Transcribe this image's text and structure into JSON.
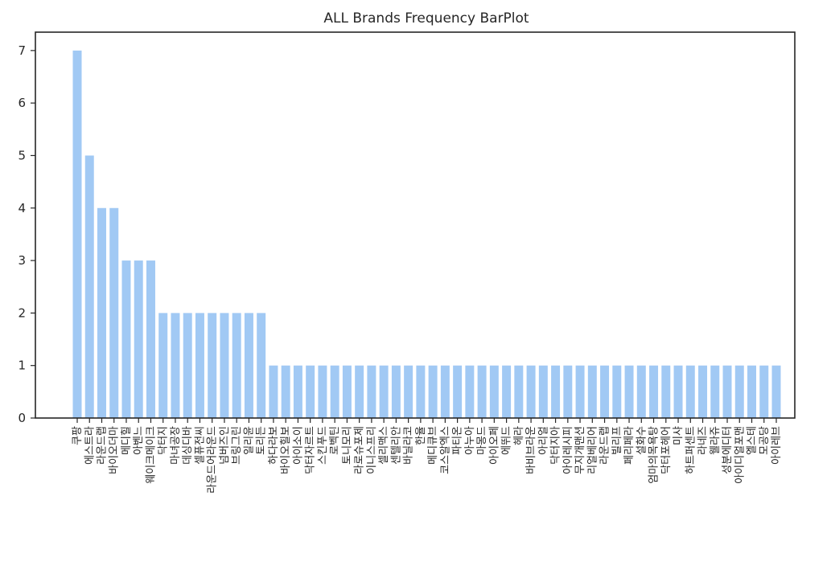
{
  "chart_data": {
    "type": "bar",
    "title": "ALL Brands Frequency BarPlot",
    "xlabel": "",
    "ylabel": "",
    "ylim": [
      0,
      7.35
    ],
    "yticks": [
      0,
      1,
      2,
      3,
      4,
      5,
      6,
      7
    ],
    "grid": false,
    "bar_color": "#a1c9f4",
    "categories": [
      "쿠팡",
      "에스트라",
      "라운드랩",
      "바이오더마",
      "메디힐",
      "아벤느",
      "웨이크메이크",
      "닥터지",
      "마녀공장",
      "데싱디바",
      "셀퓨전씨",
      "라운드어라운드",
      "넘버즈인",
      "브링그린",
      "일리윤",
      "토리든",
      "하다라보",
      "바이오힐보",
      "아이소이",
      "닥터자르트",
      "스킨푸드",
      "로벡틴",
      "토니모리",
      "라로슈포제",
      "이니스프리",
      "셀리맥스",
      "센텔리안",
      "바닐라코",
      "한율",
      "메디큐브",
      "코스알엑스",
      "파티온",
      "아누아",
      "마몽드",
      "아이오페",
      "에뛰드",
      "헤라",
      "바비브라운",
      "아리얼",
      "닥터지아",
      "아이레시피",
      "무지개맨션",
      "리얼베리어",
      "라운드랩",
      "빌리프",
      "페리페라",
      "설화수",
      "엄마의목욕탕",
      "닥터포헤어",
      "미샤",
      "하트퍼센트",
      "라네즈",
      "웰라쥬",
      "성분에디터",
      "아이디얼포맨",
      "엘스테",
      "모공당",
      "아이레브"
    ],
    "values": [
      7,
      5,
      4,
      4,
      3,
      3,
      3,
      2,
      2,
      2,
      2,
      2,
      2,
      2,
      2,
      2,
      1,
      1,
      1,
      1,
      1,
      1,
      1,
      1,
      1,
      1,
      1,
      1,
      1,
      1,
      1,
      1,
      1,
      1,
      1,
      1,
      1,
      1,
      1,
      1,
      1,
      1,
      1,
      1,
      1,
      1,
      1,
      1,
      1,
      1,
      1,
      1,
      1,
      1,
      1,
      1,
      1,
      1
    ]
  }
}
